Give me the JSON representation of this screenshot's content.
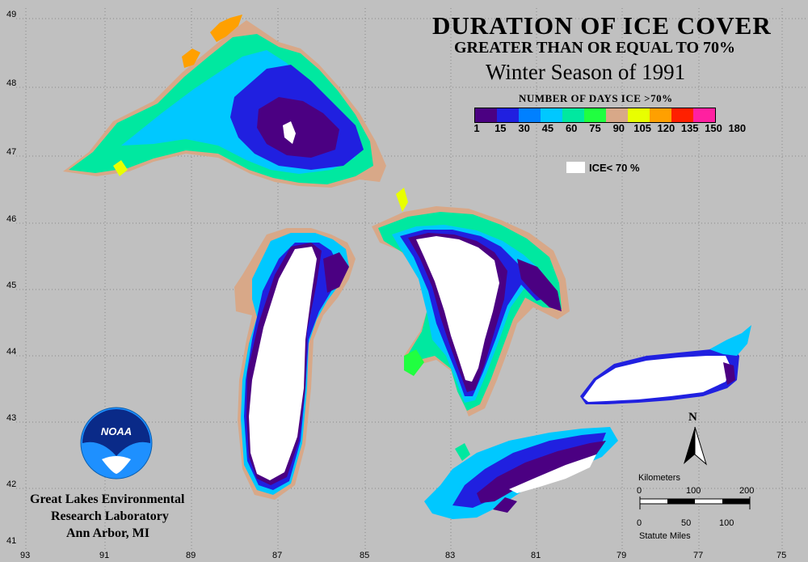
{
  "title": {
    "line1": "DURATION OF ICE COVER",
    "line2": "GREATER THAN OR EQUAL TO 70%",
    "line3": "Winter Season of 1991"
  },
  "legend": {
    "title": "NUMBER OF DAYS ICE >70%",
    "ticks": [
      "1",
      "15",
      "30",
      "45",
      "60",
      "75",
      "90",
      "105",
      "120",
      "135",
      "150",
      "180"
    ],
    "colors": [
      "#4b0082",
      "#2020e0",
      "#0080ff",
      "#00c8ff",
      "#00e8a0",
      "#20ff40",
      "#d8a888",
      "#e8ff00",
      "#ffa000",
      "#ff2000",
      "#ff20a0"
    ],
    "ice_label": "ICE< 70 %",
    "ice_color": "#ffffff"
  },
  "latitudes": [
    "49",
    "48",
    "47",
    "46",
    "45",
    "44",
    "43",
    "42",
    "41"
  ],
  "longitudes": [
    "93",
    "91",
    "89",
    "87",
    "85",
    "83",
    "81",
    "79",
    "77",
    "75"
  ],
  "organization": {
    "line1": "Great Lakes Environmental",
    "line2": "Research Laboratory",
    "line3": "Ann Arbor, MI",
    "logo_text": "NOAA"
  },
  "north_label": "N",
  "scale": {
    "km_label": "Kilometers",
    "km_ticks": [
      "0",
      "100",
      "200"
    ],
    "mi_ticks": [
      "0",
      "50",
      "100"
    ],
    "mi_label": "Statute Miles"
  }
}
